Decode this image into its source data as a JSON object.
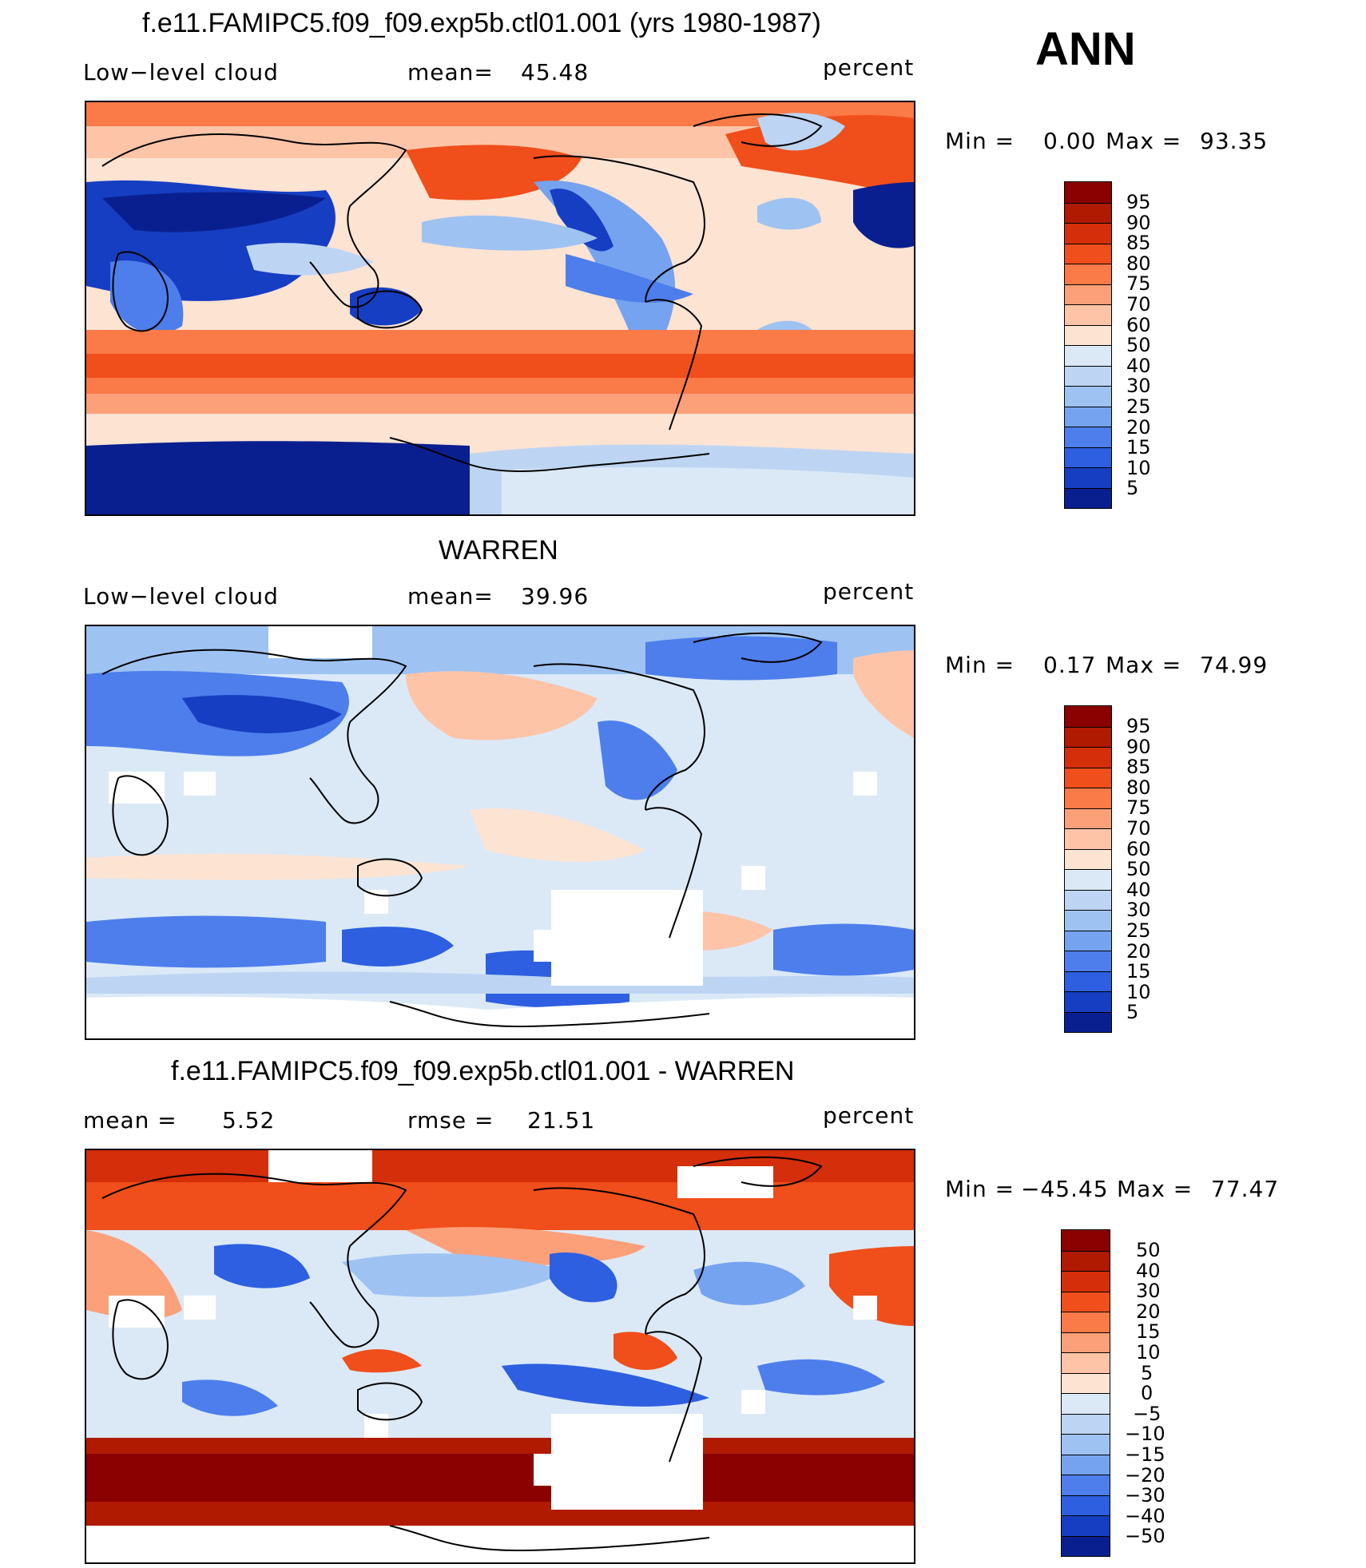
{
  "season": "ANN",
  "panels": [
    {
      "id": "model",
      "title": "f.e11.FAMIPC5.f09_f09.exp5b.ctl01.001 (yrs 1980-1987)",
      "left_label": "Low−level cloud",
      "mid_label": "mean=",
      "mid_value": "45.48",
      "units": "percent",
      "min_label": "Min  =",
      "min_value": "0.00",
      "max_label": "Max  =",
      "max_value": "93.35",
      "colorbar_labels": [
        "95",
        "90",
        "85",
        "80",
        "75",
        "70",
        "60",
        "50",
        "40",
        "30",
        "25",
        "20",
        "15",
        "10",
        "5"
      ]
    },
    {
      "id": "obs",
      "title": "WARREN",
      "left_label": "Low−level cloud",
      "mid_label": "mean=",
      "mid_value": "39.96",
      "units": "percent",
      "min_label": "Min  =",
      "min_value": "0.17",
      "max_label": "Max  =",
      "max_value": "74.99",
      "colorbar_labels": [
        "95",
        "90",
        "85",
        "80",
        "75",
        "70",
        "60",
        "50",
        "40",
        "30",
        "25",
        "20",
        "15",
        "10",
        "5"
      ]
    },
    {
      "id": "diff",
      "title": "f.e11.FAMIPC5.f09_f09.exp5b.ctl01.001 - WARREN",
      "left_label": "mean =",
      "left_value": "5.52",
      "mid_label": "rmse =",
      "mid_value": "21.51",
      "units": "percent",
      "min_label": "Min  =",
      "min_value": "−45.45",
      "max_label": "Max  =",
      "max_value": "77.47",
      "colorbar_labels": [
        "50",
        "40",
        "30",
        "20",
        "15",
        "10",
        "5",
        "0",
        "−5",
        "−10",
        "−15",
        "−20",
        "−30",
        "−40",
        "−50"
      ]
    }
  ],
  "colors": {
    "scale_16": [
      "#8b0000",
      "#b01a00",
      "#d42e0a",
      "#f04e1a",
      "#fa7a48",
      "#fca07a",
      "#fdc4a8",
      "#fde3d2",
      "#dbe9f7",
      "#bdd5f3",
      "#9ec3f2",
      "#76a3ef",
      "#4d7eeb",
      "#2d5fe0",
      "#163ec2",
      "#0a1f8f"
    ],
    "land_outline": "#000000",
    "missing": "#ffffff"
  }
}
